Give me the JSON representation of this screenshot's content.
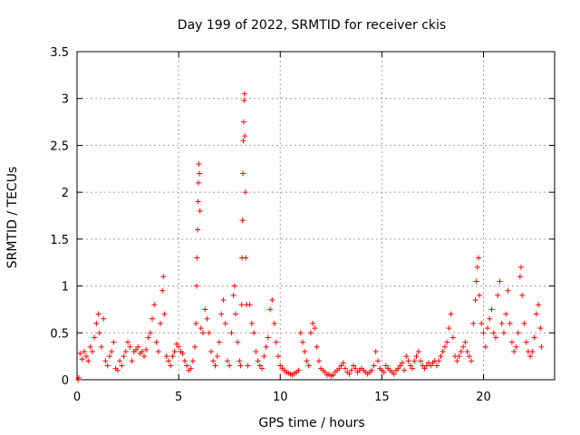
{
  "chart_data": {
    "type": "scatter",
    "title": "Day 199 of 2022, SRMTID for receiver ckis",
    "xlabel": "GPS time / hours",
    "ylabel": "SRMTID / TECUs",
    "xlim": [
      0,
      23.5
    ],
    "ylim": [
      0,
      3.5
    ],
    "xticks": [
      0,
      5,
      10,
      15,
      20
    ],
    "xtick_labels": [
      "0",
      "5",
      "10",
      "15",
      "20"
    ],
    "yticks": [
      0,
      0.5,
      1,
      1.5,
      2,
      2.5,
      3,
      3.5
    ],
    "ytick_labels": [
      "0",
      "0.5",
      "1",
      "1.5",
      "2",
      "2.5",
      "3",
      "3.5"
    ],
    "grid": true,
    "marker": "+",
    "color": "#ff0000",
    "series": [
      {
        "name": "SRMTID",
        "points": [
          [
            0.05,
            0.0
          ],
          [
            0.08,
            0.02
          ],
          [
            0.15,
            0.28
          ],
          [
            0.25,
            0.22
          ],
          [
            0.35,
            0.3
          ],
          [
            0.45,
            0.25
          ],
          [
            0.55,
            0.2
          ],
          [
            0.65,
            0.35
          ],
          [
            0.75,
            0.3
          ],
          [
            0.85,
            0.45
          ],
          [
            0.95,
            0.6
          ],
          [
            1.05,
            0.7
          ],
          [
            1.1,
            0.5
          ],
          [
            1.2,
            0.35
          ],
          [
            1.3,
            0.65
          ],
          [
            1.4,
            0.2
          ],
          [
            1.5,
            0.15
          ],
          [
            1.6,
            0.25
          ],
          [
            1.7,
            0.3
          ],
          [
            1.8,
            0.4
          ],
          [
            1.9,
            0.12
          ],
          [
            2.0,
            0.1
          ],
          [
            2.1,
            0.2
          ],
          [
            2.2,
            0.15
          ],
          [
            2.3,
            0.25
          ],
          [
            2.4,
            0.3
          ],
          [
            2.5,
            0.4
          ],
          [
            2.6,
            0.35
          ],
          [
            2.7,
            0.2
          ],
          [
            2.8,
            0.3
          ],
          [
            2.9,
            0.32
          ],
          [
            3.0,
            0.35
          ],
          [
            3.1,
            0.28
          ],
          [
            3.2,
            0.3
          ],
          [
            3.3,
            0.25
          ],
          [
            3.4,
            0.32
          ],
          [
            3.5,
            0.45
          ],
          [
            3.6,
            0.5
          ],
          [
            3.7,
            0.65
          ],
          [
            3.8,
            0.8
          ],
          [
            3.9,
            0.4
          ],
          [
            4.0,
            0.3
          ],
          [
            4.1,
            0.6
          ],
          [
            4.2,
            0.95
          ],
          [
            4.25,
            1.1
          ],
          [
            4.3,
            0.7
          ],
          [
            4.4,
            0.25
          ],
          [
            4.5,
            0.2
          ],
          [
            4.6,
            0.15
          ],
          [
            4.7,
            0.25
          ],
          [
            4.8,
            0.3
          ],
          [
            4.9,
            0.38
          ],
          [
            5.0,
            0.35
          ],
          [
            5.1,
            0.3
          ],
          [
            5.2,
            0.28
          ],
          [
            5.3,
            0.2
          ],
          [
            5.4,
            0.15
          ],
          [
            5.5,
            0.1
          ],
          [
            5.6,
            0.12
          ],
          [
            5.7,
            0.2
          ],
          [
            5.8,
            0.35
          ],
          [
            5.85,
            0.6
          ],
          [
            5.88,
            1.0
          ],
          [
            5.9,
            1.3
          ],
          [
            5.93,
            1.6
          ],
          [
            5.95,
            1.9
          ],
          [
            5.97,
            2.1
          ],
          [
            5.99,
            2.3
          ],
          [
            6.02,
            2.2
          ],
          [
            6.05,
            1.8
          ],
          [
            6.1,
            0.55
          ],
          [
            6.2,
            0.5
          ],
          [
            6.3,
            0.75
          ],
          [
            6.4,
            0.65
          ],
          [
            6.5,
            0.5
          ],
          [
            6.6,
            0.3
          ],
          [
            6.7,
            0.2
          ],
          [
            6.8,
            0.15
          ],
          [
            6.9,
            0.25
          ],
          [
            7.0,
            0.4
          ],
          [
            7.1,
            0.7
          ],
          [
            7.2,
            0.85
          ],
          [
            7.3,
            0.6
          ],
          [
            7.4,
            0.2
          ],
          [
            7.5,
            0.15
          ],
          [
            7.6,
            0.5
          ],
          [
            7.7,
            0.9
          ],
          [
            7.75,
            1.0
          ],
          [
            7.8,
            0.7
          ],
          [
            7.9,
            0.4
          ],
          [
            8.0,
            0.2
          ],
          [
            8.05,
            0.15
          ],
          [
            8.1,
            0.8
          ],
          [
            8.12,
            1.3
          ],
          [
            8.14,
            1.7
          ],
          [
            8.16,
            2.2
          ],
          [
            8.18,
            2.55
          ],
          [
            8.2,
            2.75
          ],
          [
            8.22,
            2.98
          ],
          [
            8.24,
            3.05
          ],
          [
            8.26,
            2.6
          ],
          [
            8.28,
            2.0
          ],
          [
            8.3,
            1.3
          ],
          [
            8.35,
            0.8
          ],
          [
            8.4,
            0.15
          ],
          [
            8.5,
            0.8
          ],
          [
            8.6,
            0.6
          ],
          [
            8.7,
            0.5
          ],
          [
            8.8,
            0.3
          ],
          [
            8.9,
            0.2
          ],
          [
            9.0,
            0.15
          ],
          [
            9.1,
            0.12
          ],
          [
            9.2,
            0.25
          ],
          [
            9.3,
            0.35
          ],
          [
            9.4,
            0.45
          ],
          [
            9.5,
            0.75
          ],
          [
            9.6,
            0.85
          ],
          [
            9.7,
            0.6
          ],
          [
            9.8,
            0.4
          ],
          [
            9.9,
            0.25
          ],
          [
            10.0,
            0.15
          ],
          [
            10.1,
            0.12
          ],
          [
            10.2,
            0.1
          ],
          [
            10.3,
            0.08
          ],
          [
            10.4,
            0.07
          ],
          [
            10.5,
            0.06
          ],
          [
            10.6,
            0.05
          ],
          [
            10.7,
            0.07
          ],
          [
            10.8,
            0.08
          ],
          [
            10.9,
            0.1
          ],
          [
            11.0,
            0.5
          ],
          [
            11.1,
            0.4
          ],
          [
            11.2,
            0.3
          ],
          [
            11.3,
            0.2
          ],
          [
            11.4,
            0.15
          ],
          [
            11.5,
            0.5
          ],
          [
            11.6,
            0.6
          ],
          [
            11.7,
            0.55
          ],
          [
            11.8,
            0.35
          ],
          [
            11.9,
            0.2
          ],
          [
            12.0,
            0.12
          ],
          [
            12.1,
            0.1
          ],
          [
            12.2,
            0.08
          ],
          [
            12.3,
            0.05
          ],
          [
            12.4,
            0.06
          ],
          [
            12.5,
            0.04
          ],
          [
            12.6,
            0.05
          ],
          [
            12.7,
            0.08
          ],
          [
            12.8,
            0.1
          ],
          [
            12.9,
            0.12
          ],
          [
            13.0,
            0.15
          ],
          [
            13.1,
            0.18
          ],
          [
            13.2,
            0.12
          ],
          [
            13.3,
            0.08
          ],
          [
            13.4,
            0.06
          ],
          [
            13.5,
            0.1
          ],
          [
            13.6,
            0.15
          ],
          [
            13.7,
            0.12
          ],
          [
            13.8,
            0.08
          ],
          [
            13.9,
            0.1
          ],
          [
            14.0,
            0.12
          ],
          [
            14.1,
            0.1
          ],
          [
            14.2,
            0.08
          ],
          [
            14.3,
            0.06
          ],
          [
            14.4,
            0.08
          ],
          [
            14.5,
            0.1
          ],
          [
            14.6,
            0.15
          ],
          [
            14.7,
            0.3
          ],
          [
            14.8,
            0.2
          ],
          [
            14.9,
            0.12
          ],
          [
            15.0,
            0.1
          ],
          [
            15.1,
            0.08
          ],
          [
            15.2,
            0.15
          ],
          [
            15.3,
            0.12
          ],
          [
            15.4,
            0.1
          ],
          [
            15.5,
            0.08
          ],
          [
            15.6,
            0.06
          ],
          [
            15.7,
            0.1
          ],
          [
            15.8,
            0.12
          ],
          [
            15.9,
            0.15
          ],
          [
            16.0,
            0.18
          ],
          [
            16.1,
            0.1
          ],
          [
            16.2,
            0.25
          ],
          [
            16.3,
            0.2
          ],
          [
            16.4,
            0.15
          ],
          [
            16.5,
            0.12
          ],
          [
            16.6,
            0.2
          ],
          [
            16.7,
            0.25
          ],
          [
            16.8,
            0.3
          ],
          [
            16.9,
            0.2
          ],
          [
            17.0,
            0.15
          ],
          [
            17.1,
            0.12
          ],
          [
            17.2,
            0.15
          ],
          [
            17.3,
            0.18
          ],
          [
            17.4,
            0.15
          ],
          [
            17.5,
            0.18
          ],
          [
            17.6,
            0.2
          ],
          [
            17.7,
            0.15
          ],
          [
            17.8,
            0.2
          ],
          [
            17.9,
            0.25
          ],
          [
            18.0,
            0.3
          ],
          [
            18.1,
            0.35
          ],
          [
            18.2,
            0.4
          ],
          [
            18.3,
            0.55
          ],
          [
            18.4,
            0.7
          ],
          [
            18.5,
            0.45
          ],
          [
            18.6,
            0.25
          ],
          [
            18.7,
            0.2
          ],
          [
            18.8,
            0.25
          ],
          [
            18.9,
            0.3
          ],
          [
            19.0,
            0.35
          ],
          [
            19.1,
            0.4
          ],
          [
            19.2,
            0.3
          ],
          [
            19.3,
            0.25
          ],
          [
            19.4,
            0.2
          ],
          [
            19.5,
            0.6
          ],
          [
            19.6,
            0.85
          ],
          [
            19.65,
            1.05
          ],
          [
            19.7,
            1.2
          ],
          [
            19.75,
            1.3
          ],
          [
            19.8,
            0.9
          ],
          [
            19.9,
            0.6
          ],
          [
            20.0,
            0.5
          ],
          [
            20.1,
            0.35
          ],
          [
            20.2,
            0.55
          ],
          [
            20.3,
            0.65
          ],
          [
            20.4,
            0.75
          ],
          [
            20.5,
            0.5
          ],
          [
            20.6,
            0.45
          ],
          [
            20.7,
            0.9
          ],
          [
            20.8,
            1.05
          ],
          [
            20.9,
            0.6
          ],
          [
            21.0,
            0.5
          ],
          [
            21.1,
            0.7
          ],
          [
            21.2,
            0.95
          ],
          [
            21.3,
            0.6
          ],
          [
            21.4,
            0.4
          ],
          [
            21.5,
            0.3
          ],
          [
            21.6,
            0.35
          ],
          [
            21.7,
            0.5
          ],
          [
            21.8,
            1.1
          ],
          [
            21.85,
            1.2
          ],
          [
            21.9,
            0.9
          ],
          [
            22.0,
            0.6
          ],
          [
            22.1,
            0.4
          ],
          [
            22.2,
            0.3
          ],
          [
            22.3,
            0.25
          ],
          [
            22.4,
            0.3
          ],
          [
            22.5,
            0.45
          ],
          [
            22.6,
            0.7
          ],
          [
            22.7,
            0.8
          ],
          [
            22.8,
            0.55
          ],
          [
            22.85,
            0.35
          ]
        ]
      }
    ]
  }
}
